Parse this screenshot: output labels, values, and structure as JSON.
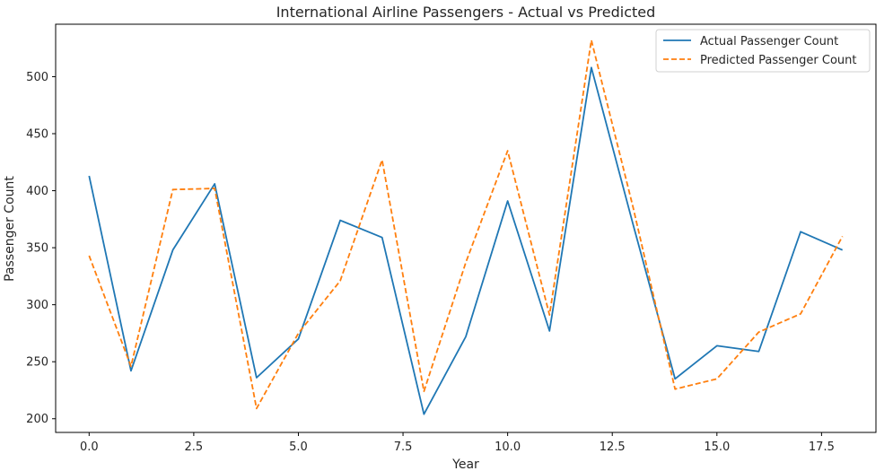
{
  "chart_data": {
    "type": "line",
    "title": "International Airline Passengers - Actual vs Predicted",
    "xlabel": "Year",
    "ylabel": "Passenger Count",
    "xlim": [
      -0.8,
      18.8
    ],
    "ylim": [
      188,
      546
    ],
    "x_ticks": [
      "0.0",
      "2.5",
      "5.0",
      "7.5",
      "10.0",
      "12.5",
      "15.0",
      "17.5"
    ],
    "x_tick_values": [
      0,
      2.5,
      5,
      7.5,
      10,
      12.5,
      15,
      17.5
    ],
    "y_ticks": [
      "200",
      "250",
      "300",
      "350",
      "400",
      "450",
      "500"
    ],
    "y_tick_values": [
      200,
      250,
      300,
      350,
      400,
      450,
      500
    ],
    "grid": false,
    "legend_position": "top-right",
    "x": [
      0,
      1,
      2,
      3,
      4,
      5,
      6,
      7,
      8,
      9,
      10,
      11,
      12,
      13,
      14,
      15,
      16,
      17,
      18
    ],
    "series": [
      {
        "name": "Actual Passenger Count",
        "color": "#1f77b4",
        "style": "solid",
        "values": [
          413,
          242,
          348,
          406,
          236,
          270,
          374,
          359,
          204,
          272,
          391,
          277,
          508,
          370,
          235,
          264,
          259,
          364,
          348
        ]
      },
      {
        "name": "Predicted Passenger Count",
        "color": "#ff7f0e",
        "style": "dashed",
        "values": [
          343,
          246,
          401,
          402,
          209,
          275,
          321,
          427,
          224,
          337,
          435,
          291,
          532,
          385,
          226,
          235,
          276,
          292,
          360
        ]
      }
    ]
  }
}
